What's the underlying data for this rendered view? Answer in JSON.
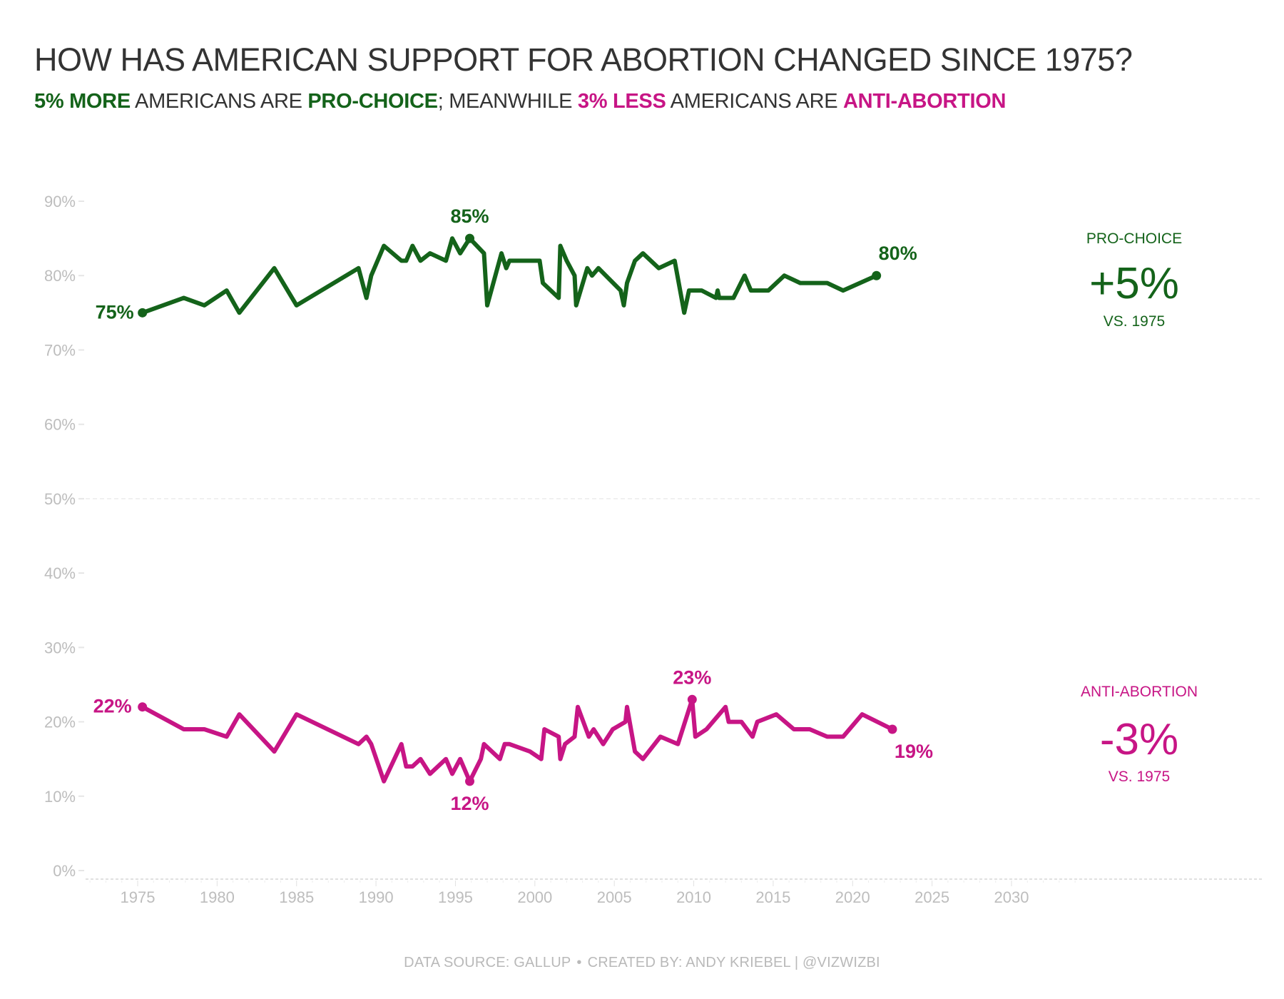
{
  "header": {
    "title": "HOW HAS AMERICAN SUPPORT FOR ABORTION CHANGED SINCE 1975?",
    "subtitle": {
      "part1_highlight": "5% MORE",
      "part2": " AMERICANS ARE ",
      "part3_highlight": "PRO-CHOICE",
      "part4": "; MEANWHILE ",
      "part5_highlight": "3% LESS",
      "part6": " AMERICANS ARE ",
      "part7_highlight": "ANTI-ABORTION"
    }
  },
  "footer": {
    "source": "DATA SOURCE: GALLUP",
    "separator": "•",
    "credit": "CREATED BY: ANDY KRIEBEL | @VIZWIZBI"
  },
  "colors": {
    "pro_choice": "#14631a",
    "anti_abortion": "#c71585",
    "axis_text": "#bdbdbd",
    "title_text": "#333333"
  },
  "chart_data": {
    "type": "line",
    "title": "HOW HAS AMERICAN SUPPORT FOR ABORTION CHANGED SINCE 1975?",
    "xlabel": "",
    "ylabel": "",
    "xlim": [
      1971,
      2034.5
    ],
    "ylim": [
      0,
      90
    ],
    "x_ticks": [
      1975,
      1980,
      1985,
      1990,
      1995,
      2000,
      2005,
      2010,
      2015,
      2020,
      2025,
      2030
    ],
    "x_tick_labels": [
      "1975",
      "1980",
      "1985",
      "1990",
      "1995",
      "2000",
      "2005",
      "2010",
      "2015",
      "2020",
      "2025",
      "2030"
    ],
    "y_ticks": [
      0,
      10,
      20,
      30,
      40,
      50,
      60,
      70,
      80,
      90
    ],
    "y_tick_labels": [
      "0%",
      "10%",
      "20%",
      "30%",
      "40%",
      "50%",
      "60%",
      "70%",
      "80%",
      "90%"
    ],
    "reference_line": 50,
    "grid": false,
    "legend": "none (direct labels, right side)",
    "series": [
      {
        "name": "PRO-CHOICE",
        "color": "#14631a",
        "points": [
          [
            1975.3,
            75
          ],
          [
            1977.9,
            77
          ],
          [
            1979.2,
            76
          ],
          [
            1980.6,
            78
          ],
          [
            1981.4,
            75
          ],
          [
            1983.6,
            81
          ],
          [
            1985.0,
            76
          ],
          [
            1988.9,
            81
          ],
          [
            1989.4,
            77
          ],
          [
            1989.7,
            80
          ],
          [
            1990.5,
            84
          ],
          [
            1991.6,
            82
          ],
          [
            1991.9,
            82
          ],
          [
            1992.3,
            84
          ],
          [
            1992.8,
            82
          ],
          [
            1993.4,
            83
          ],
          [
            1994.4,
            82
          ],
          [
            1994.8,
            85
          ],
          [
            1995.3,
            83
          ],
          [
            1995.9,
            85
          ],
          [
            1996.8,
            83
          ],
          [
            1997.0,
            76
          ],
          [
            1997.9,
            83
          ],
          [
            1998.2,
            81
          ],
          [
            1998.4,
            82
          ],
          [
            2000.3,
            82
          ],
          [
            2000.5,
            79
          ],
          [
            2001.5,
            77
          ],
          [
            2001.6,
            84
          ],
          [
            2002.0,
            82
          ],
          [
            2002.5,
            80
          ],
          [
            2002.6,
            76
          ],
          [
            2003.3,
            81
          ],
          [
            2003.6,
            80
          ],
          [
            2004.0,
            81
          ],
          [
            2005.4,
            78
          ],
          [
            2005.6,
            76
          ],
          [
            2005.8,
            79
          ],
          [
            2006.3,
            82
          ],
          [
            2006.8,
            83
          ],
          [
            2007.8,
            81
          ],
          [
            2008.8,
            82
          ],
          [
            2009.4,
            75
          ],
          [
            2009.7,
            78
          ],
          [
            2010.5,
            78
          ],
          [
            2011.4,
            77
          ],
          [
            2011.5,
            78
          ],
          [
            2011.6,
            77
          ],
          [
            2012.5,
            77
          ],
          [
            2013.2,
            80
          ],
          [
            2013.6,
            78
          ],
          [
            2014.7,
            78
          ],
          [
            2015.7,
            80
          ],
          [
            2016.7,
            79
          ],
          [
            2018.4,
            79
          ],
          [
            2019.4,
            78
          ],
          [
            2021.5,
            80
          ]
        ],
        "labels": [
          {
            "year": 1975.3,
            "value": 75,
            "text": "75%"
          },
          {
            "year": 1995.9,
            "value": 85,
            "text": "85%"
          },
          {
            "year": 2021.5,
            "value": 80,
            "text": "80%"
          }
        ],
        "summary": {
          "label": "PRO-CHOICE",
          "change": "+5%",
          "note": "VS. 1975"
        }
      },
      {
        "name": "ANTI-ABORTION",
        "color": "#c71585",
        "points": [
          [
            1975.3,
            22
          ],
          [
            1977.9,
            19
          ],
          [
            1979.2,
            19
          ],
          [
            1980.6,
            18
          ],
          [
            1981.4,
            21
          ],
          [
            1983.6,
            16
          ],
          [
            1985.0,
            21
          ],
          [
            1988.9,
            17
          ],
          [
            1989.4,
            18
          ],
          [
            1989.7,
            17
          ],
          [
            1990.5,
            12
          ],
          [
            1991.6,
            17
          ],
          [
            1991.9,
            14
          ],
          [
            1992.3,
            14
          ],
          [
            1992.8,
            15
          ],
          [
            1993.4,
            13
          ],
          [
            1994.4,
            15
          ],
          [
            1994.8,
            13
          ],
          [
            1995.3,
            15
          ],
          [
            1995.9,
            12
          ],
          [
            1996.6,
            15
          ],
          [
            1996.8,
            17
          ],
          [
            1997.8,
            15
          ],
          [
            1998.1,
            17
          ],
          [
            1998.4,
            17
          ],
          [
            1999.7,
            16
          ],
          [
            2000.4,
            15
          ],
          [
            2000.6,
            19
          ],
          [
            2001.5,
            18
          ],
          [
            2001.6,
            15
          ],
          [
            2001.9,
            17
          ],
          [
            2002.5,
            18
          ],
          [
            2002.7,
            22
          ],
          [
            2003.4,
            18
          ],
          [
            2003.7,
            19
          ],
          [
            2004.3,
            17
          ],
          [
            2004.9,
            19
          ],
          [
            2005.7,
            20
          ],
          [
            2005.8,
            22
          ],
          [
            2006.3,
            16
          ],
          [
            2006.8,
            15
          ],
          [
            2007.9,
            18
          ],
          [
            2009.0,
            17
          ],
          [
            2009.9,
            23
          ],
          [
            2010.1,
            18
          ],
          [
            2010.8,
            19
          ],
          [
            2012.0,
            22
          ],
          [
            2012.2,
            20
          ],
          [
            2013.0,
            20
          ],
          [
            2013.7,
            18
          ],
          [
            2014.0,
            20
          ],
          [
            2015.2,
            21
          ],
          [
            2016.3,
            19
          ],
          [
            2017.3,
            19
          ],
          [
            2018.4,
            18
          ],
          [
            2019.4,
            18
          ],
          [
            2020.6,
            21
          ],
          [
            2022.5,
            19
          ]
        ],
        "labels": [
          {
            "year": 1975.3,
            "value": 22,
            "text": "22%"
          },
          {
            "year": 1995.9,
            "value": 12,
            "text": "12%"
          },
          {
            "year": 2009.9,
            "value": 23,
            "text": "23%"
          },
          {
            "year": 2022.5,
            "value": 19,
            "text": "19%"
          }
        ],
        "summary": {
          "label": "ANTI-ABORTION",
          "change": "-3%",
          "note": "VS. 1975"
        }
      }
    ]
  }
}
